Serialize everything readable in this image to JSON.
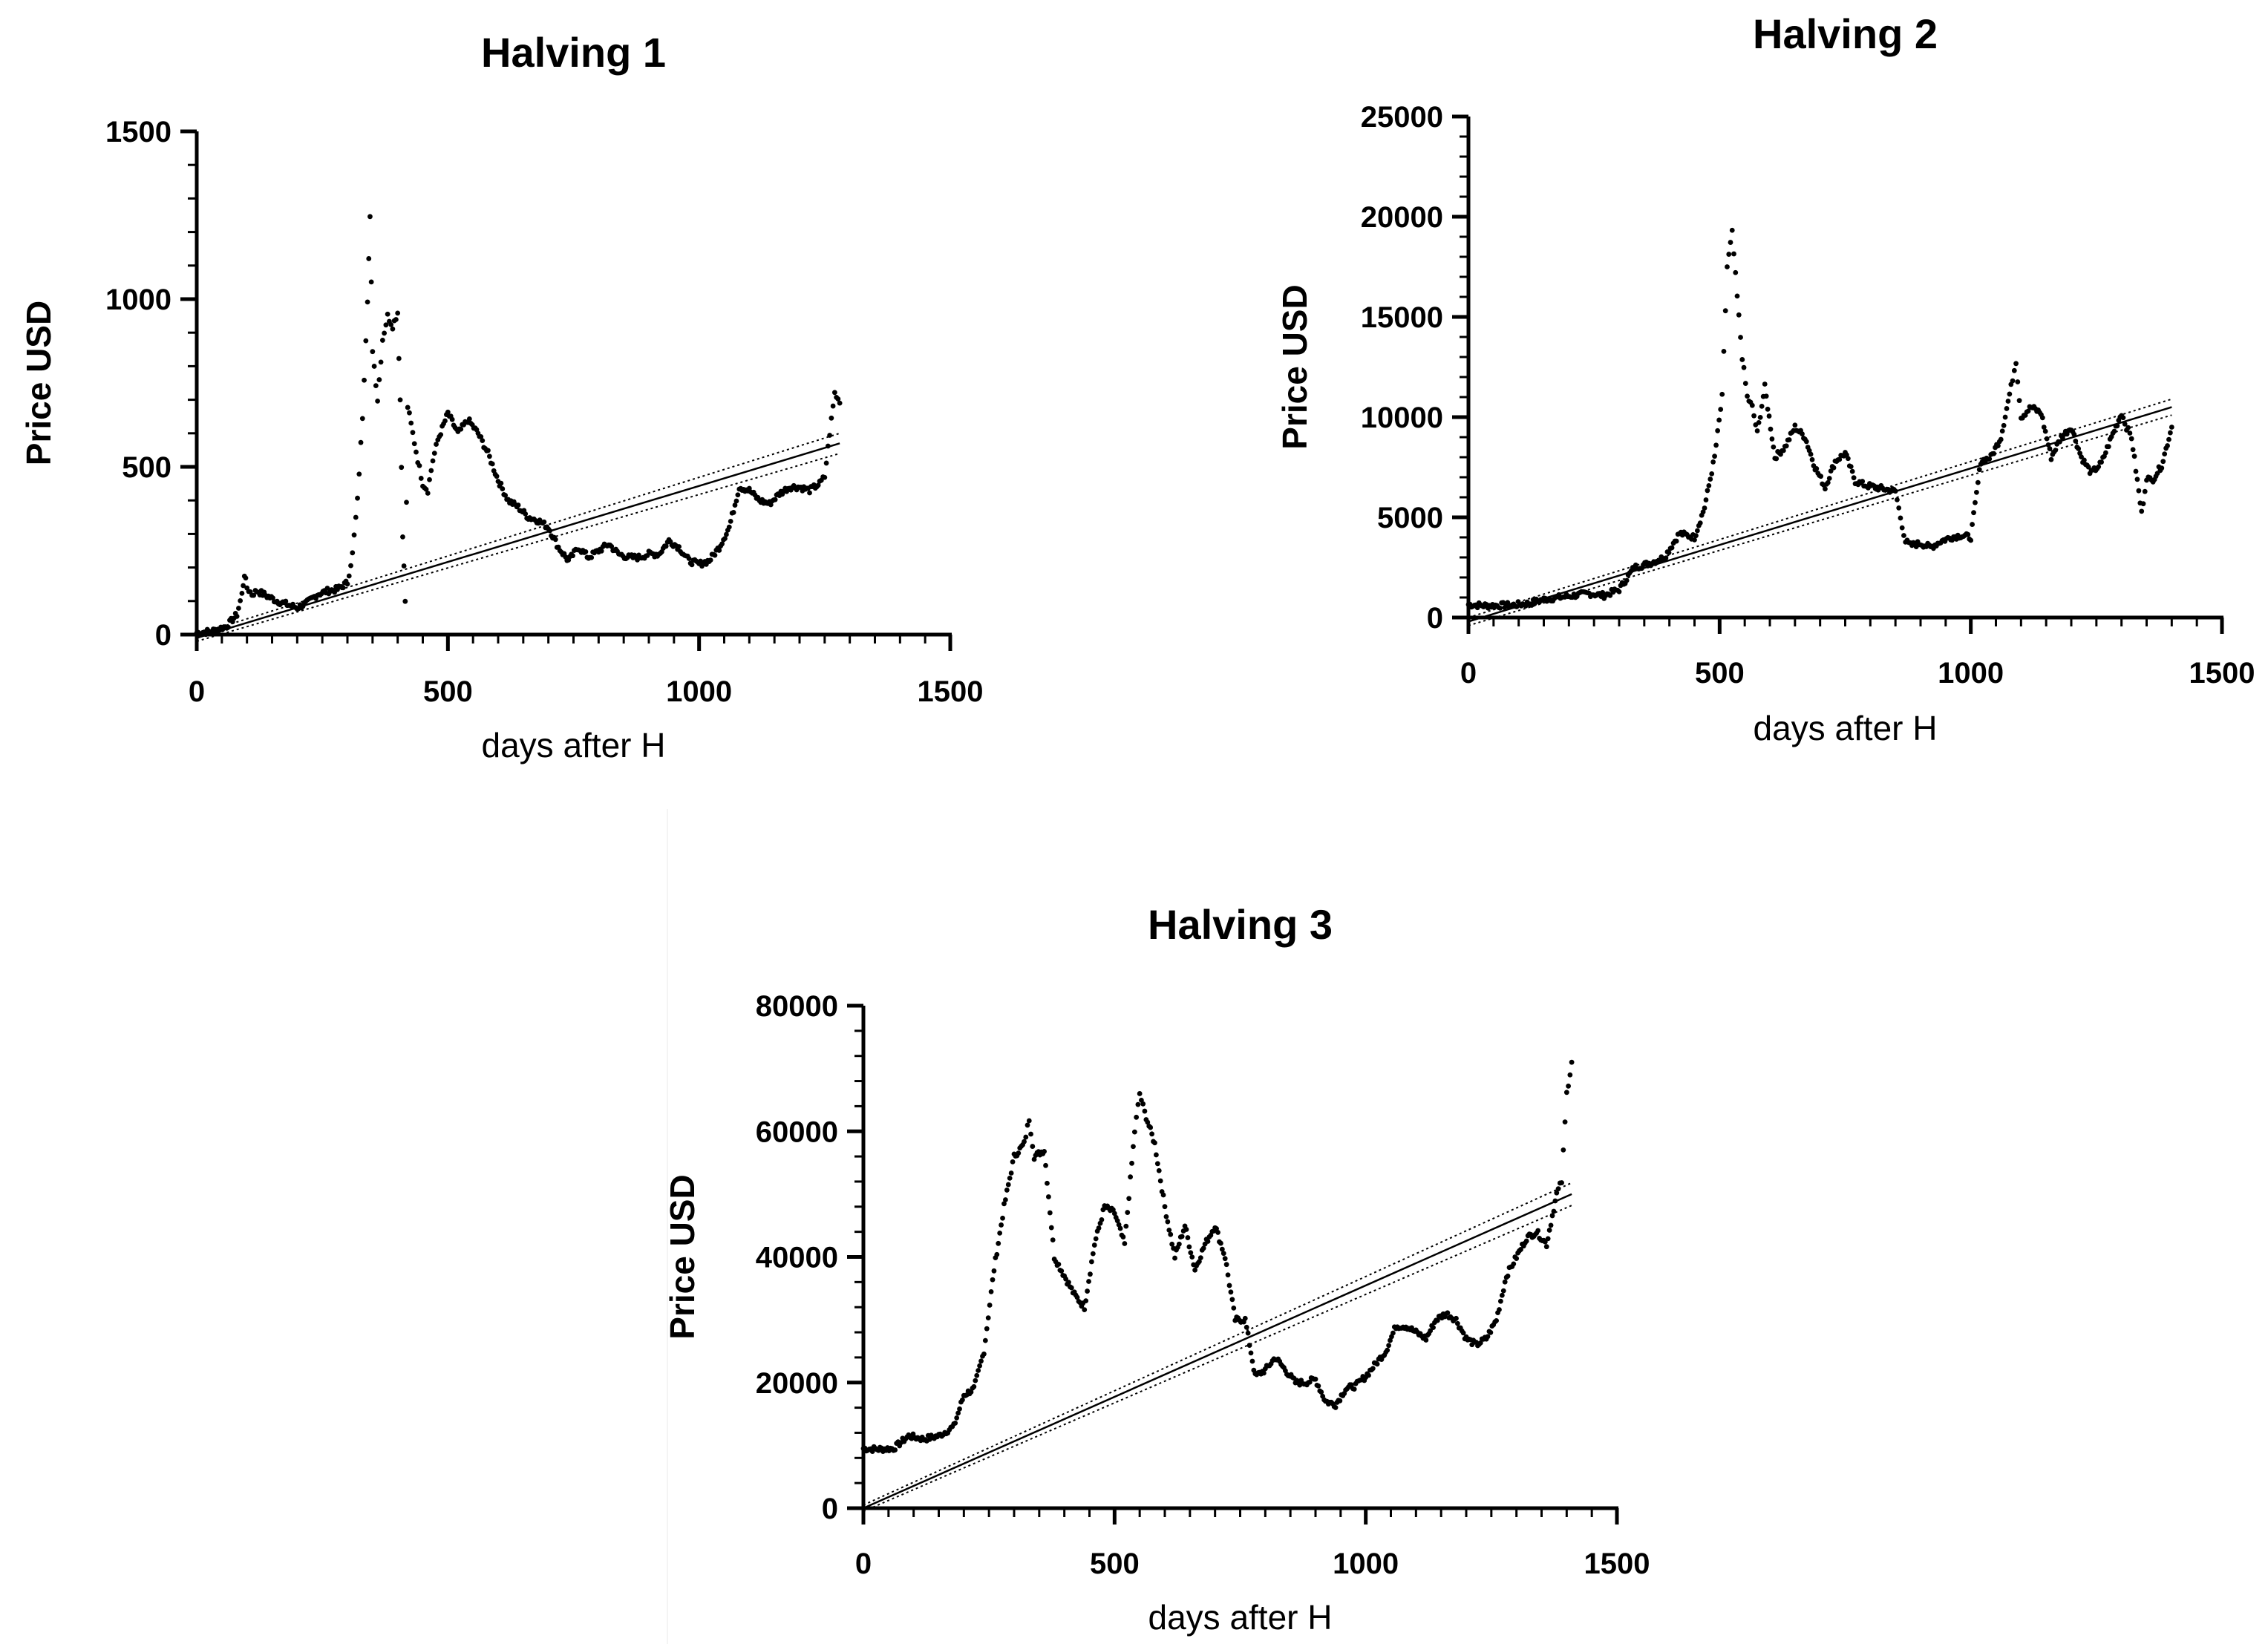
{
  "chart_data": [
    {
      "type": "scatter",
      "title": "Halving 1",
      "xlabel": "days after H",
      "ylabel": "Price USD",
      "xlim": [
        0,
        1500
      ],
      "ylim": [
        0,
        1500
      ],
      "x_ticks": [
        "0",
        "500",
        "1000",
        "1500"
      ],
      "y_ticks": [
        "0",
        "500",
        "1000",
        "1500"
      ],
      "grid": false,
      "marker_color": "#000000",
      "series": [
        {
          "x": [
            0,
            30,
            60,
            80,
            90,
            95,
            100,
            110,
            120,
            140,
            160,
            180,
            200,
            220,
            240,
            260,
            280,
            300,
            310,
            320,
            330,
            340,
            345,
            350,
            360,
            370,
            380,
            390,
            400,
            405,
            410,
            415,
            420,
            430,
            440,
            450,
            460,
            470,
            480,
            500,
            520,
            540,
            560,
            580,
            600,
            620,
            640,
            660,
            680,
            700,
            720,
            740,
            760,
            780,
            800,
            820,
            840,
            860,
            880,
            900,
            920,
            940,
            960,
            980,
            1000,
            1020,
            1040,
            1060,
            1080,
            1100,
            1120,
            1140,
            1160,
            1180,
            1200,
            1220,
            1240,
            1250,
            1260,
            1270,
            1280
          ],
          "y": [
            5,
            10,
            25,
            60,
            120,
            180,
            140,
            120,
            130,
            115,
            100,
            90,
            80,
            95,
            120,
            130,
            135,
            155,
            240,
            400,
            650,
            1000,
            1240,
            850,
            700,
            880,
            950,
            920,
            960,
            700,
            300,
            100,
            680,
            600,
            520,
            450,
            430,
            520,
            580,
            660,
            600,
            640,
            600,
            540,
            460,
            400,
            380,
            350,
            340,
            320,
            260,
            220,
            260,
            230,
            250,
            270,
            240,
            230,
            230,
            240,
            240,
            280,
            260,
            220,
            210,
            220,
            260,
            320,
            440,
            430,
            400,
            390,
            420,
            440,
            440,
            430,
            450,
            470,
            600,
            720,
            690
          ]
        }
      ],
      "fit_line": {
        "x": [
          0,
          1280
        ],
        "y": [
          -10,
          570
        ]
      },
      "band_upper": {
        "x": [
          0,
          1280
        ],
        "y": [
          0,
          600
        ]
      },
      "band_lower": {
        "x": [
          0,
          1280
        ],
        "y": [
          -20,
          540
        ]
      }
    },
    {
      "type": "scatter",
      "title": "Halving 2",
      "xlabel": "days after H",
      "ylabel": "Price USD",
      "xlim": [
        0,
        1500
      ],
      "ylim": [
        0,
        25000
      ],
      "x_ticks": [
        "0",
        "500",
        "1000",
        "1500"
      ],
      "y_ticks": [
        "0",
        "5000",
        "10000",
        "15000",
        "20000",
        "25000"
      ],
      "grid": false,
      "marker_color": "#000000",
      "series": [
        {
          "x": [
            0,
            30,
            60,
            90,
            120,
            150,
            180,
            210,
            240,
            270,
            300,
            330,
            360,
            390,
            420,
            450,
            470,
            490,
            505,
            515,
            525,
            535,
            545,
            555,
            565,
            575,
            590,
            610,
            630,
            650,
            670,
            690,
            710,
            730,
            750,
            770,
            790,
            810,
            830,
            850,
            860,
            870,
            880,
            900,
            920,
            940,
            960,
            980,
            1000,
            1020,
            1040,
            1060,
            1080,
            1090,
            1100,
            1120,
            1140,
            1160,
            1180,
            1200,
            1220,
            1240,
            1260,
            1280,
            1300,
            1310,
            1320,
            1340,
            1350,
            1360,
            1380,
            1400
          ],
          "y": [
            650,
            600,
            600,
            620,
            700,
            900,
            1000,
            1100,
            1200,
            1100,
            1400,
            2500,
            2700,
            3000,
            4200,
            4000,
            5500,
            8000,
            11000,
            17500,
            19200,
            16000,
            13000,
            11000,
            10500,
            9200,
            11500,
            8000,
            8500,
            9500,
            9000,
            7500,
            6500,
            7800,
            8200,
            6800,
            6600,
            6500,
            6400,
            6300,
            5000,
            3800,
            3600,
            3700,
            3500,
            3800,
            4000,
            4100,
            4000,
            7800,
            8000,
            9000,
            11500,
            12800,
            10000,
            10500,
            10200,
            8000,
            9000,
            9500,
            8000,
            7200,
            7700,
            9000,
            10200,
            9500,
            9000,
            5200,
            7000,
            6800,
            7600,
            9500
          ]
        }
      ],
      "fit_line": {
        "x": [
          0,
          1400
        ],
        "y": [
          -200,
          10500
        ]
      },
      "band_upper": {
        "x": [
          0,
          1400
        ],
        "y": [
          0,
          10900
        ]
      },
      "band_lower": {
        "x": [
          0,
          1400
        ],
        "y": [
          -400,
          10100
        ]
      }
    },
    {
      "type": "scatter",
      "title": "Halving 3",
      "xlabel": "days after H",
      "ylabel": "Price USD",
      "xlim": [
        0,
        1500
      ],
      "ylim": [
        0,
        80000
      ],
      "x_ticks": [
        "0",
        "500",
        "1000",
        "1500"
      ],
      "y_ticks": [
        "0",
        "20000",
        "40000",
        "60000",
        "80000"
      ],
      "grid": false,
      "marker_color": "#000000",
      "series": [
        {
          "x": [
            0,
            30,
            60,
            90,
            120,
            150,
            180,
            200,
            220,
            240,
            260,
            280,
            300,
            320,
            330,
            340,
            360,
            380,
            400,
            420,
            440,
            460,
            480,
            500,
            520,
            540,
            550,
            560,
            580,
            600,
            620,
            640,
            660,
            680,
            700,
            720,
            740,
            760,
            780,
            800,
            820,
            840,
            860,
            880,
            900,
            920,
            940,
            960,
            980,
            1000,
            1020,
            1040,
            1060,
            1080,
            1100,
            1120,
            1140,
            1160,
            1180,
            1200,
            1220,
            1240,
            1260,
            1280,
            1300,
            1320,
            1340,
            1360,
            1380,
            1390,
            1400,
            1410
          ],
          "y": [
            9500,
            9400,
            9500,
            11500,
            11000,
            11500,
            13000,
            18000,
            19000,
            25000,
            38000,
            48000,
            56000,
            58000,
            62000,
            56000,
            57000,
            40000,
            37000,
            34000,
            32000,
            42000,
            48000,
            47000,
            42000,
            60000,
            66000,
            63000,
            58000,
            48000,
            40000,
            45000,
            38000,
            42000,
            45000,
            40000,
            30000,
            30000,
            21000,
            22000,
            24000,
            22000,
            20000,
            20000,
            20500,
            17000,
            16500,
            19000,
            19500,
            21000,
            23000,
            25000,
            29000,
            29000,
            28000,
            27000,
            30000,
            31000,
            30000,
            27000,
            26000,
            27000,
            30000,
            37000,
            40000,
            43000,
            44000,
            42000,
            50000,
            52000,
            66000,
            71000
          ]
        }
      ],
      "fit_line": {
        "x": [
          0,
          1410
        ],
        "y": [
          0,
          50000
        ]
      },
      "band_upper": {
        "x": [
          0,
          1410
        ],
        "y": [
          500,
          51800
        ]
      },
      "band_lower": {
        "x": [
          0,
          1410
        ],
        "y": [
          -500,
          48200
        ]
      }
    }
  ]
}
